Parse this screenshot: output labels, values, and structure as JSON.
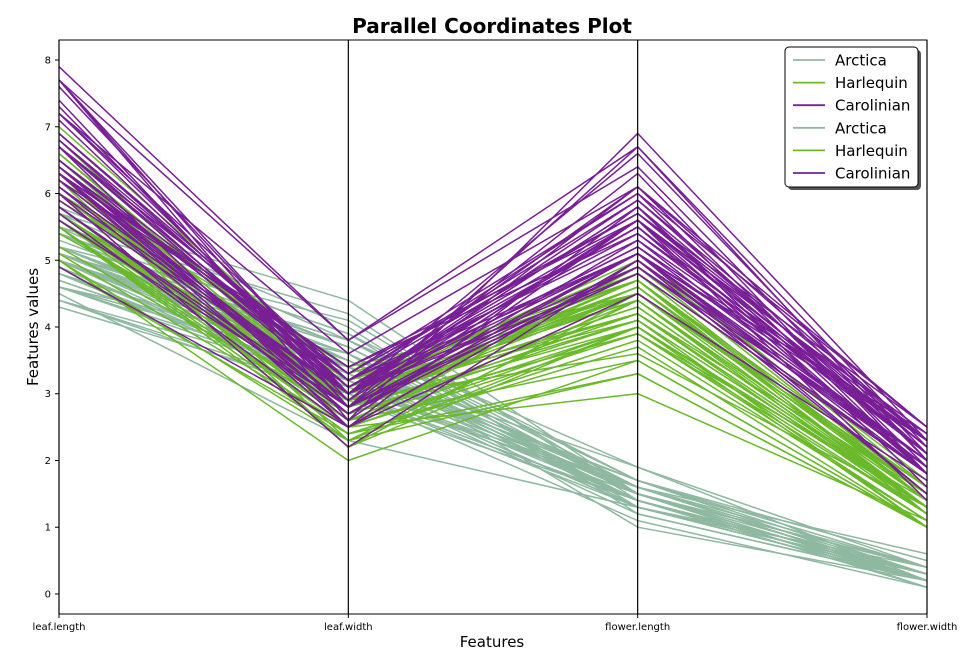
{
  "colors": {
    "Arctica": "#8fb8a0",
    "Harlequin": "#6ab92a",
    "Carolinian": "#781f96"
  },
  "chart_data": {
    "type": "line",
    "title": "Parallel Coordinates Plot",
    "xlabel": "Features",
    "ylabel": "Features values",
    "categories": [
      "leaf.length",
      "leaf.width",
      "flower.length",
      "flower.width"
    ],
    "ylim": [
      -0.3,
      8.3
    ],
    "yticks": [
      "0",
      "1",
      "2",
      "3",
      "4",
      "5",
      "6",
      "7",
      "8"
    ],
    "grid": false,
    "legend_position": "top-right",
    "legend": [
      "Arctica",
      "Harlequin",
      "Carolinian",
      "Arctica",
      "Harlequin",
      "Carolinian"
    ],
    "series": [
      {
        "name": "Arctica",
        "lines": [
          [
            5.1,
            3.5,
            1.4,
            0.2
          ],
          [
            4.9,
            3.0,
            1.4,
            0.2
          ],
          [
            4.7,
            3.2,
            1.3,
            0.2
          ],
          [
            4.6,
            3.1,
            1.5,
            0.2
          ],
          [
            5.0,
            3.6,
            1.4,
            0.2
          ],
          [
            5.4,
            3.9,
            1.7,
            0.4
          ],
          [
            4.6,
            3.4,
            1.4,
            0.3
          ],
          [
            5.0,
            3.4,
            1.5,
            0.2
          ],
          [
            4.4,
            2.9,
            1.4,
            0.2
          ],
          [
            4.9,
            3.1,
            1.5,
            0.1
          ],
          [
            5.4,
            3.7,
            1.5,
            0.2
          ],
          [
            4.8,
            3.4,
            1.6,
            0.2
          ],
          [
            4.8,
            3.0,
            1.4,
            0.1
          ],
          [
            4.3,
            3.0,
            1.1,
            0.1
          ],
          [
            5.8,
            4.0,
            1.2,
            0.2
          ],
          [
            5.7,
            4.4,
            1.5,
            0.4
          ],
          [
            5.4,
            3.9,
            1.3,
            0.4
          ],
          [
            5.1,
            3.5,
            1.4,
            0.3
          ],
          [
            5.7,
            3.8,
            1.7,
            0.3
          ],
          [
            5.1,
            3.8,
            1.5,
            0.3
          ],
          [
            5.4,
            3.4,
            1.7,
            0.2
          ],
          [
            5.1,
            3.7,
            1.5,
            0.4
          ],
          [
            4.6,
            3.6,
            1.0,
            0.2
          ],
          [
            5.1,
            3.3,
            1.7,
            0.5
          ],
          [
            4.8,
            3.4,
            1.9,
            0.2
          ],
          [
            5.0,
            3.0,
            1.6,
            0.2
          ],
          [
            5.0,
            3.4,
            1.6,
            0.4
          ],
          [
            5.2,
            3.5,
            1.5,
            0.2
          ],
          [
            5.2,
            3.4,
            1.4,
            0.2
          ],
          [
            4.7,
            3.2,
            1.6,
            0.2
          ],
          [
            4.8,
            3.1,
            1.6,
            0.2
          ],
          [
            5.4,
            3.4,
            1.5,
            0.4
          ],
          [
            5.2,
            4.1,
            1.5,
            0.1
          ],
          [
            5.5,
            4.2,
            1.4,
            0.2
          ],
          [
            4.9,
            3.1,
            1.5,
            0.2
          ],
          [
            5.0,
            3.2,
            1.2,
            0.2
          ],
          [
            5.5,
            3.5,
            1.3,
            0.2
          ],
          [
            4.4,
            3.0,
            1.3,
            0.2
          ],
          [
            5.1,
            3.4,
            1.5,
            0.2
          ],
          [
            5.0,
            3.5,
            1.3,
            0.3
          ],
          [
            4.5,
            2.3,
            1.3,
            0.3
          ],
          [
            4.4,
            3.2,
            1.3,
            0.2
          ],
          [
            5.0,
            3.5,
            1.6,
            0.6
          ],
          [
            5.1,
            3.8,
            1.9,
            0.4
          ],
          [
            4.8,
            3.0,
            1.4,
            0.3
          ],
          [
            5.1,
            3.8,
            1.6,
            0.2
          ],
          [
            4.6,
            3.2,
            1.4,
            0.2
          ],
          [
            5.3,
            3.7,
            1.5,
            0.2
          ],
          [
            5.0,
            3.3,
            1.4,
            0.2
          ],
          [
            5.2,
            3.6,
            1.6,
            0.3
          ]
        ]
      },
      {
        "name": "Harlequin",
        "lines": [
          [
            7.0,
            3.2,
            4.7,
            1.4
          ],
          [
            6.4,
            3.2,
            4.5,
            1.5
          ],
          [
            6.9,
            3.1,
            4.9,
            1.5
          ],
          [
            5.5,
            2.3,
            4.0,
            1.3
          ],
          [
            6.5,
            2.8,
            4.6,
            1.5
          ],
          [
            5.7,
            2.8,
            4.5,
            1.3
          ],
          [
            6.3,
            3.3,
            4.7,
            1.6
          ],
          [
            4.9,
            2.4,
            3.3,
            1.0
          ],
          [
            6.6,
            2.9,
            4.6,
            1.3
          ],
          [
            5.2,
            2.7,
            3.9,
            1.4
          ],
          [
            5.0,
            2.0,
            3.5,
            1.0
          ],
          [
            5.9,
            3.0,
            4.2,
            1.5
          ],
          [
            6.0,
            2.2,
            4.0,
            1.0
          ],
          [
            6.1,
            2.9,
            4.7,
            1.4
          ],
          [
            5.6,
            2.9,
            3.6,
            1.3
          ],
          [
            6.7,
            3.1,
            4.4,
            1.4
          ],
          [
            5.6,
            3.0,
            4.5,
            1.5
          ],
          [
            5.8,
            2.7,
            4.1,
            1.0
          ],
          [
            6.2,
            2.2,
            4.5,
            1.5
          ],
          [
            5.6,
            2.5,
            3.9,
            1.1
          ],
          [
            5.9,
            3.2,
            4.8,
            1.8
          ],
          [
            6.1,
            2.8,
            4.0,
            1.3
          ],
          [
            6.3,
            2.5,
            4.9,
            1.5
          ],
          [
            6.1,
            2.8,
            4.7,
            1.2
          ],
          [
            6.4,
            2.9,
            4.3,
            1.3
          ],
          [
            6.6,
            3.0,
            4.4,
            1.4
          ],
          [
            6.8,
            2.8,
            4.8,
            1.4
          ],
          [
            6.7,
            3.0,
            5.0,
            1.7
          ],
          [
            6.0,
            2.9,
            4.5,
            1.5
          ],
          [
            5.7,
            2.6,
            3.5,
            1.0
          ],
          [
            5.5,
            2.4,
            3.8,
            1.1
          ],
          [
            5.5,
            2.4,
            3.7,
            1.0
          ],
          [
            5.8,
            2.7,
            3.9,
            1.2
          ],
          [
            6.0,
            2.7,
            5.1,
            1.6
          ],
          [
            5.4,
            3.0,
            4.5,
            1.5
          ],
          [
            6.0,
            3.4,
            4.5,
            1.6
          ],
          [
            6.7,
            3.1,
            4.7,
            1.5
          ],
          [
            6.3,
            2.3,
            4.4,
            1.3
          ],
          [
            5.6,
            3.0,
            4.1,
            1.3
          ],
          [
            5.5,
            2.5,
            4.0,
            1.3
          ],
          [
            5.5,
            2.6,
            4.4,
            1.2
          ],
          [
            6.1,
            3.0,
            4.6,
            1.4
          ],
          [
            5.8,
            2.6,
            4.0,
            1.2
          ],
          [
            5.0,
            2.3,
            3.3,
            1.0
          ],
          [
            5.6,
            2.7,
            4.2,
            1.3
          ],
          [
            5.7,
            3.0,
            4.2,
            1.2
          ],
          [
            5.7,
            2.9,
            4.2,
            1.3
          ],
          [
            6.2,
            2.9,
            4.3,
            1.3
          ],
          [
            5.1,
            2.5,
            3.0,
            1.1
          ],
          [
            5.7,
            2.8,
            4.1,
            1.3
          ]
        ]
      },
      {
        "name": "Carolinian",
        "lines": [
          [
            6.3,
            3.3,
            6.0,
            2.5
          ],
          [
            5.8,
            2.7,
            5.1,
            1.9
          ],
          [
            7.1,
            3.0,
            5.9,
            2.1
          ],
          [
            6.3,
            2.9,
            5.6,
            1.8
          ],
          [
            6.5,
            3.0,
            5.8,
            2.2
          ],
          [
            7.6,
            3.0,
            6.6,
            2.1
          ],
          [
            4.9,
            2.5,
            4.5,
            1.7
          ],
          [
            7.3,
            2.9,
            6.3,
            1.8
          ],
          [
            6.7,
            2.5,
            5.8,
            1.8
          ],
          [
            7.2,
            3.6,
            6.1,
            2.5
          ],
          [
            6.5,
            3.2,
            5.1,
            2.0
          ],
          [
            6.4,
            2.7,
            5.3,
            1.9
          ],
          [
            6.8,
            3.0,
            5.5,
            2.1
          ],
          [
            5.7,
            2.5,
            5.0,
            2.0
          ],
          [
            5.8,
            2.8,
            5.1,
            2.4
          ],
          [
            6.4,
            3.2,
            5.3,
            2.3
          ],
          [
            6.5,
            3.0,
            5.5,
            1.8
          ],
          [
            7.7,
            3.8,
            6.7,
            2.2
          ],
          [
            7.7,
            2.6,
            6.9,
            2.3
          ],
          [
            6.0,
            2.2,
            5.0,
            1.5
          ],
          [
            6.9,
            3.2,
            5.7,
            2.3
          ],
          [
            5.6,
            2.8,
            4.9,
            2.0
          ],
          [
            7.7,
            2.8,
            6.7,
            2.0
          ],
          [
            6.3,
            2.7,
            4.9,
            1.8
          ],
          [
            6.7,
            3.3,
            5.7,
            2.1
          ],
          [
            7.2,
            3.2,
            6.0,
            1.8
          ],
          [
            6.2,
            2.8,
            4.8,
            1.8
          ],
          [
            6.1,
            3.0,
            4.9,
            1.8
          ],
          [
            6.4,
            2.8,
            5.6,
            2.1
          ],
          [
            7.2,
            3.0,
            5.8,
            1.6
          ],
          [
            7.4,
            2.8,
            6.1,
            1.9
          ],
          [
            7.9,
            3.8,
            6.4,
            2.0
          ],
          [
            6.4,
            2.8,
            5.6,
            2.2
          ],
          [
            6.3,
            2.8,
            5.1,
            1.5
          ],
          [
            6.1,
            2.6,
            5.6,
            1.4
          ],
          [
            7.7,
            3.0,
            6.1,
            2.3
          ],
          [
            6.3,
            3.4,
            5.6,
            2.4
          ],
          [
            6.4,
            3.1,
            5.5,
            1.8
          ],
          [
            6.0,
            3.0,
            4.8,
            1.8
          ],
          [
            6.9,
            3.1,
            5.4,
            2.1
          ],
          [
            6.7,
            3.1,
            5.6,
            2.4
          ],
          [
            6.9,
            3.1,
            5.1,
            2.3
          ],
          [
            5.8,
            2.7,
            5.1,
            1.9
          ],
          [
            6.8,
            3.2,
            5.9,
            2.3
          ],
          [
            6.7,
            3.3,
            5.7,
            2.5
          ],
          [
            6.7,
            3.0,
            5.2,
            2.3
          ],
          [
            6.3,
            2.5,
            5.0,
            1.9
          ],
          [
            6.5,
            3.0,
            5.2,
            2.0
          ],
          [
            6.2,
            3.4,
            5.4,
            2.3
          ],
          [
            5.9,
            3.0,
            5.1,
            1.8
          ]
        ]
      }
    ]
  }
}
